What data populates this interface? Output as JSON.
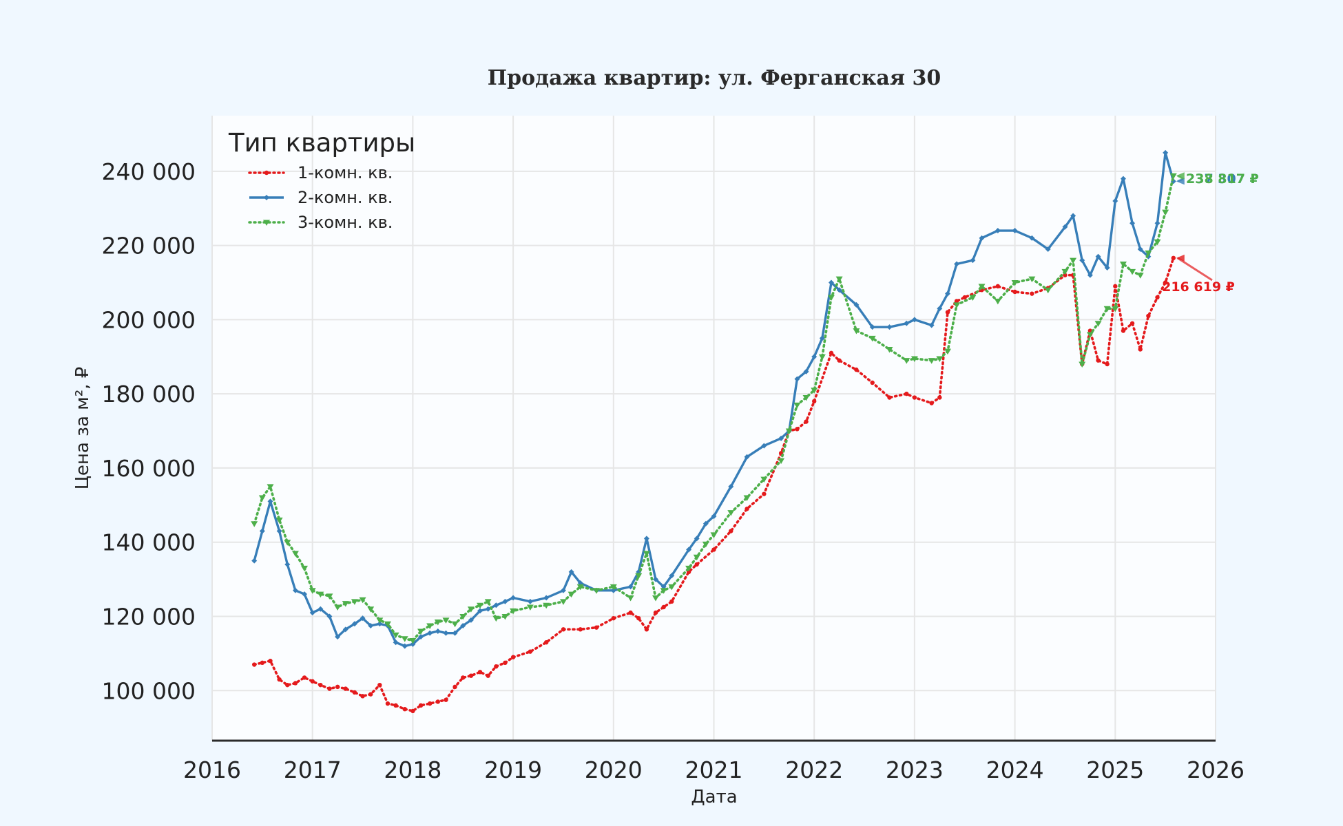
{
  "chart_data": {
    "type": "line",
    "title": "Продажа квартир: ул. Ферганская 30",
    "xlabel": "Дата",
    "ylabel": "Цена за м², ₽",
    "xlim": [
      2016.0,
      2026.0
    ],
    "ylim": [
      86500,
      255000
    ],
    "x_ticks": [
      2016,
      2017,
      2018,
      2019,
      2020,
      2021,
      2022,
      2023,
      2024,
      2025,
      2026
    ],
    "x_tick_labels": [
      "2016",
      "2017",
      "2018",
      "2019",
      "2020",
      "2021",
      "2022",
      "2023",
      "2024",
      "2025",
      "2026"
    ],
    "y_ticks": [
      100000,
      120000,
      140000,
      160000,
      180000,
      200000,
      220000,
      240000
    ],
    "y_tick_labels": [
      "100 000",
      "120 000",
      "140 000",
      "160 000",
      "180 000",
      "200 000",
      "220 000",
      "240 000"
    ],
    "grid": true,
    "legend": {
      "title": "Тип квартиры",
      "position": "top-left"
    },
    "series": [
      {
        "name": "1-комн. кв.",
        "color": "#e41a1c",
        "style": "dotted",
        "marker": "circle",
        "end_label": "216 619 ₽",
        "x": [
          2016.42,
          2016.5,
          2016.58,
          2016.67,
          2016.75,
          2016.83,
          2016.92,
          2017.0,
          2017.08,
          2017.17,
          2017.25,
          2017.33,
          2017.42,
          2017.5,
          2017.58,
          2017.67,
          2017.75,
          2017.83,
          2017.92,
          2018.0,
          2018.08,
          2018.17,
          2018.25,
          2018.33,
          2018.42,
          2018.5,
          2018.58,
          2018.67,
          2018.75,
          2018.83,
          2018.92,
          2019.0,
          2019.17,
          2019.33,
          2019.5,
          2019.67,
          2019.83,
          2020.0,
          2020.17,
          2020.25,
          2020.33,
          2020.42,
          2020.5,
          2020.58,
          2020.75,
          2020.83,
          2021.0,
          2021.17,
          2021.33,
          2021.5,
          2021.67,
          2021.75,
          2021.83,
          2021.92,
          2022.0,
          2022.17,
          2022.25,
          2022.42,
          2022.58,
          2022.75,
          2022.92,
          2023.0,
          2023.17,
          2023.25,
          2023.33,
          2023.42,
          2023.5,
          2023.67,
          2023.83,
          2024.0,
          2024.17,
          2024.33,
          2024.5,
          2024.58,
          2024.67,
          2024.75,
          2024.83,
          2024.92,
          2025.0,
          2025.08,
          2025.17,
          2025.25,
          2025.33,
          2025.42,
          2025.5,
          2025.58
        ],
        "values": [
          107000,
          107500,
          108000,
          103000,
          101500,
          102000,
          103500,
          102500,
          101500,
          100500,
          101000,
          100500,
          99500,
          98500,
          99000,
          101500,
          96500,
          96000,
          95000,
          94500,
          96000,
          96500,
          97000,
          97500,
          101000,
          103500,
          104000,
          105000,
          104000,
          106500,
          107500,
          109000,
          110500,
          113000,
          116500,
          116500,
          117000,
          119500,
          121000,
          119500,
          116500,
          121000,
          122500,
          124000,
          132000,
          134000,
          138000,
          143000,
          149000,
          153000,
          164000,
          170000,
          170500,
          172500,
          178000,
          191000,
          189000,
          186500,
          183000,
          179000,
          180000,
          179000,
          177500,
          179000,
          202000,
          205000,
          206000,
          208000,
          209000,
          207500,
          207000,
          208500,
          212000,
          212000,
          188000,
          197000,
          189000,
          188000,
          209000,
          197000,
          199000,
          192000,
          201000,
          206000,
          210000,
          216619
        ]
      },
      {
        "name": "2-комн. кв.",
        "color": "#377eb8",
        "style": "solid",
        "marker": "diamond",
        "end_label": "237 307 ₽",
        "x": [
          2016.42,
          2016.5,
          2016.58,
          2016.67,
          2016.75,
          2016.83,
          2016.92,
          2017.0,
          2017.08,
          2017.17,
          2017.25,
          2017.33,
          2017.42,
          2017.5,
          2017.58,
          2017.67,
          2017.75,
          2017.83,
          2017.92,
          2018.0,
          2018.08,
          2018.17,
          2018.25,
          2018.33,
          2018.42,
          2018.5,
          2018.58,
          2018.67,
          2018.75,
          2018.83,
          2018.92,
          2019.0,
          2019.17,
          2019.33,
          2019.5,
          2019.58,
          2019.67,
          2019.83,
          2020.0,
          2020.17,
          2020.25,
          2020.33,
          2020.42,
          2020.5,
          2020.58,
          2020.75,
          2020.83,
          2020.92,
          2021.0,
          2021.17,
          2021.33,
          2021.5,
          2021.67,
          2021.75,
          2021.83,
          2021.92,
          2022.0,
          2022.08,
          2022.17,
          2022.25,
          2022.42,
          2022.58,
          2022.75,
          2022.92,
          2023.0,
          2023.17,
          2023.25,
          2023.33,
          2023.42,
          2023.58,
          2023.67,
          2023.83,
          2024.0,
          2024.17,
          2024.33,
          2024.5,
          2024.58,
          2024.67,
          2024.75,
          2024.83,
          2024.92,
          2025.0,
          2025.08,
          2025.17,
          2025.25,
          2025.33,
          2025.42,
          2025.5,
          2025.58
        ],
        "values": [
          135000,
          143000,
          151000,
          143000,
          134000,
          127000,
          126000,
          121000,
          122000,
          120000,
          114500,
          116500,
          118000,
          119500,
          117500,
          118000,
          117500,
          113000,
          112000,
          112500,
          114500,
          115500,
          116000,
          115500,
          115500,
          117500,
          119000,
          121500,
          122000,
          123000,
          124000,
          125000,
          124000,
          125000,
          127000,
          132000,
          129000,
          127000,
          127000,
          128000,
          132000,
          141000,
          130000,
          128000,
          131000,
          138000,
          141000,
          145000,
          147000,
          155000,
          163000,
          166000,
          168000,
          170000,
          184000,
          186000,
          190000,
          195000,
          210000,
          208000,
          204000,
          198000,
          198000,
          199000,
          200000,
          198500,
          203000,
          207000,
          215000,
          216000,
          222000,
          224000,
          224000,
          222000,
          219000,
          225000,
          228000,
          216000,
          212000,
          217000,
          214000,
          232000,
          238000,
          226000,
          219000,
          217000,
          226000,
          245000,
          237307
        ]
      },
      {
        "name": "3-комн. кв.",
        "color": "#4daf4a",
        "style": "dotted",
        "marker": "triangle-down",
        "end_label": "238 817 ₽",
        "x": [
          2016.42,
          2016.5,
          2016.58,
          2016.67,
          2016.75,
          2016.83,
          2016.92,
          2017.0,
          2017.08,
          2017.17,
          2017.25,
          2017.33,
          2017.42,
          2017.5,
          2017.58,
          2017.67,
          2017.75,
          2017.83,
          2017.92,
          2018.0,
          2018.08,
          2018.17,
          2018.25,
          2018.33,
          2018.42,
          2018.5,
          2018.58,
          2018.67,
          2018.75,
          2018.83,
          2018.92,
          2019.0,
          2019.17,
          2019.33,
          2019.5,
          2019.58,
          2019.67,
          2019.83,
          2020.0,
          2020.17,
          2020.25,
          2020.33,
          2020.42,
          2020.5,
          2020.58,
          2020.75,
          2020.83,
          2020.92,
          2021.0,
          2021.17,
          2021.33,
          2021.5,
          2021.67,
          2021.75,
          2021.83,
          2021.92,
          2022.0,
          2022.08,
          2022.17,
          2022.25,
          2022.42,
          2022.58,
          2022.75,
          2022.92,
          2023.0,
          2023.17,
          2023.25,
          2023.33,
          2023.42,
          2023.58,
          2023.67,
          2023.83,
          2024.0,
          2024.17,
          2024.33,
          2024.5,
          2024.58,
          2024.67,
          2024.75,
          2024.83,
          2024.92,
          2025.0,
          2025.08,
          2025.17,
          2025.25,
          2025.33,
          2025.42,
          2025.5,
          2025.58
        ],
        "values": [
          145000,
          152000,
          155000,
          146000,
          140000,
          137000,
          133000,
          127000,
          126000,
          125500,
          122500,
          123500,
          124000,
          124500,
          122000,
          119000,
          118000,
          115000,
          114000,
          113500,
          116000,
          117500,
          118500,
          119000,
          118000,
          120000,
          122000,
          123000,
          124000,
          119500,
          120000,
          121500,
          122500,
          123000,
          124000,
          126000,
          128000,
          127000,
          128000,
          125000,
          131000,
          137000,
          125000,
          127000,
          128000,
          133000,
          136000,
          139500,
          142000,
          148000,
          152000,
          157000,
          162000,
          170000,
          177000,
          179000,
          181000,
          190000,
          206000,
          211000,
          197000,
          195000,
          192000,
          189000,
          189500,
          189000,
          189500,
          191500,
          204000,
          206000,
          209000,
          205000,
          210000,
          211000,
          208000,
          213000,
          216000,
          188000,
          196000,
          199000,
          203000,
          203000,
          215000,
          213000,
          212000,
          218000,
          221000,
          229000,
          238817
        ]
      }
    ]
  }
}
